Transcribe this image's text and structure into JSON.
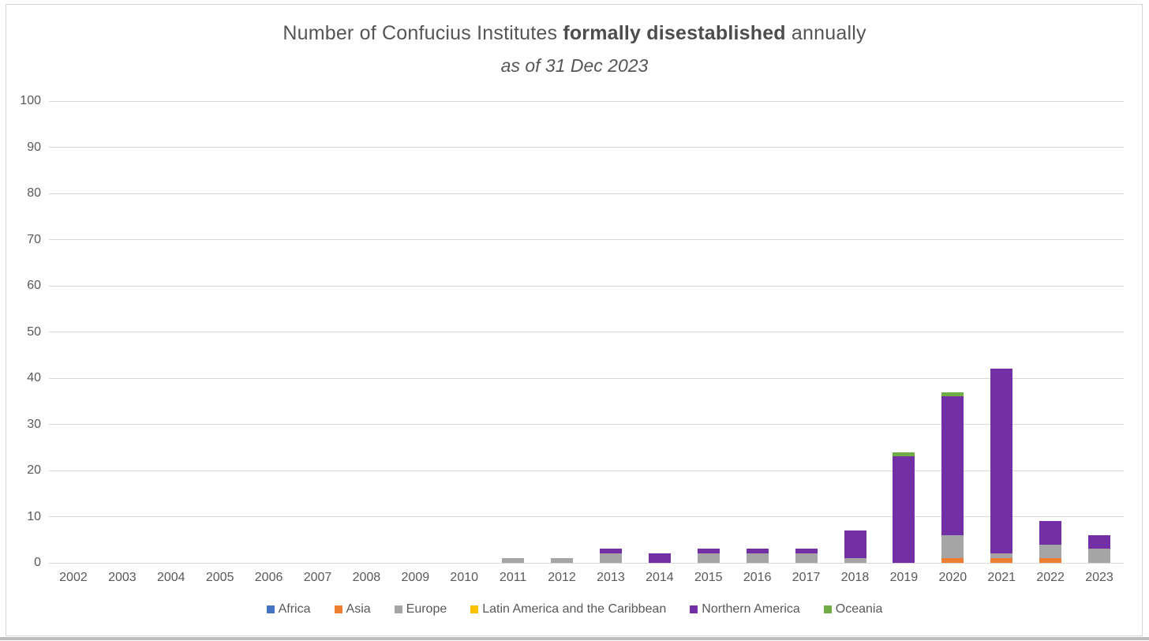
{
  "title": {
    "part1": "Number of Confucius Institutes ",
    "bold": "formally disestablished",
    "part2": " annually",
    "subtitle": "as of 31 Dec 2023"
  },
  "chart_data": {
    "type": "bar",
    "stacked": true,
    "title": "Number of Confucius Institutes formally disestablished annually",
    "subtitle": "as of 31 Dec 2023",
    "categories": [
      "2002",
      "2003",
      "2004",
      "2005",
      "2006",
      "2007",
      "2008",
      "2009",
      "2010",
      "2011",
      "2012",
      "2013",
      "2014",
      "2015",
      "2016",
      "2017",
      "2018",
      "2019",
      "2020",
      "2021",
      "2022",
      "2023"
    ],
    "series": [
      {
        "name": "Africa",
        "color": "#4472C4",
        "values": [
          0,
          0,
          0,
          0,
          0,
          0,
          0,
          0,
          0,
          0,
          0,
          0,
          0,
          0,
          0,
          0,
          0,
          0,
          0,
          0,
          0,
          0
        ]
      },
      {
        "name": "Asia",
        "color": "#ED7D31",
        "values": [
          0,
          0,
          0,
          0,
          0,
          0,
          0,
          0,
          0,
          0,
          0,
          0,
          0,
          0,
          0,
          0,
          0,
          0,
          1,
          1,
          1,
          0
        ]
      },
      {
        "name": "Europe",
        "color": "#A5A5A5",
        "values": [
          0,
          0,
          0,
          0,
          0,
          0,
          0,
          0,
          0,
          1,
          1,
          2,
          0,
          2,
          2,
          2,
          1,
          0,
          5,
          1,
          3,
          3
        ]
      },
      {
        "name": "Latin America and the Caribbean",
        "color": "#FFC000",
        "values": [
          0,
          0,
          0,
          0,
          0,
          0,
          0,
          0,
          0,
          0,
          0,
          0,
          0,
          0,
          0,
          0,
          0,
          0,
          0,
          0,
          0,
          0
        ]
      },
      {
        "name": "Northern America",
        "color": "#7330A6",
        "values": [
          0,
          0,
          0,
          0,
          0,
          0,
          0,
          0,
          0,
          0,
          0,
          1,
          2,
          1,
          1,
          1,
          6,
          23,
          30,
          40,
          5,
          3
        ]
      },
      {
        "name": "Oceania",
        "color": "#70AD47",
        "values": [
          0,
          0,
          0,
          0,
          0,
          0,
          0,
          0,
          0,
          0,
          0,
          0,
          0,
          0,
          0,
          0,
          0,
          1,
          1,
          0,
          0,
          0
        ]
      }
    ],
    "totals_by_year": [
      0,
      0,
      0,
      0,
      0,
      0,
      0,
      0,
      0,
      1,
      1,
      3,
      2,
      3,
      3,
      3,
      7,
      24,
      37,
      42,
      9,
      6
    ],
    "ylim": [
      0,
      100
    ],
    "ytick_step": 10,
    "yticks": [
      0,
      10,
      20,
      30,
      40,
      50,
      60,
      70,
      80,
      90,
      100
    ],
    "grid": true,
    "legend_position": "bottom"
  }
}
